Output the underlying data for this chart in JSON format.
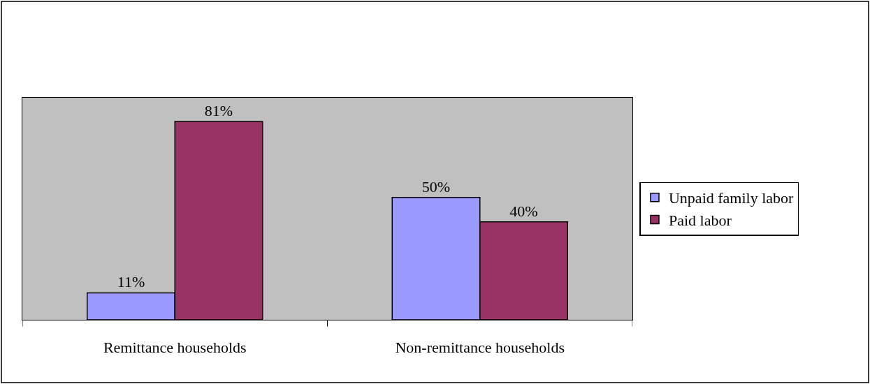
{
  "chart_data": {
    "type": "bar",
    "categories": [
      "Remittance households",
      "Non-remittance households"
    ],
    "series": [
      {
        "name": "Unpaid family labor",
        "color": "#9999ff",
        "values": [
          11,
          50
        ],
        "value_labels": [
          "11%",
          "50%"
        ]
      },
      {
        "name": "Paid labor",
        "color": "#993366",
        "values": [
          81,
          40
        ],
        "value_labels": [
          "81%",
          "40%"
        ]
      }
    ],
    "legend": "right",
    "grid": false
  }
}
